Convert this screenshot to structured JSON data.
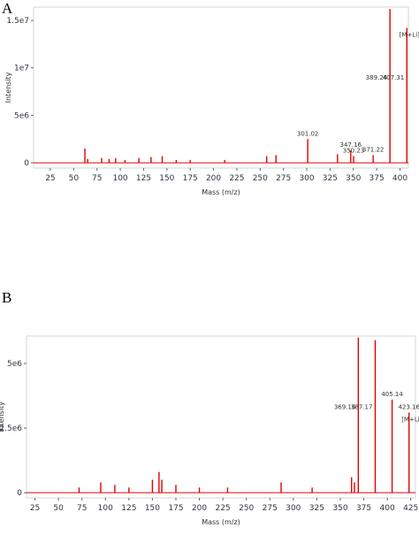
{
  "panels": [
    "A",
    "B"
  ],
  "chart_data": [
    {
      "type": "stem",
      "x_label": "Mass (m/z)",
      "y_label": "Intensity",
      "color": "#e00000",
      "x": [
        62,
        65,
        80,
        88,
        95,
        105,
        120,
        133,
        145,
        160,
        175,
        212,
        257,
        267,
        301.02,
        333,
        347.16,
        350.23,
        371.22,
        389.24,
        407.31
      ],
      "values": [
        1500000,
        400000,
        500000,
        400000,
        500000,
        300000,
        500000,
        600000,
        700000,
        300000,
        300000,
        300000,
        700000,
        800000,
        2500000,
        900000,
        1300000,
        700000,
        800000,
        16200000,
        14200000
      ],
      "peak_labels": [
        null,
        null,
        null,
        null,
        null,
        null,
        null,
        null,
        null,
        null,
        null,
        null,
        null,
        null,
        "301.02",
        null,
        "347.16",
        "350.23",
        "371.22",
        "389.24",
        "407.31"
      ],
      "annotation": "[M+Li]+",
      "xlim": [
        7,
        409
      ],
      "xticks": [
        25,
        50,
        75,
        100,
        125,
        150,
        175,
        200,
        225,
        250,
        275,
        300,
        325,
        350,
        375,
        400
      ],
      "ylim": [
        -550000,
        16400000
      ],
      "yticks": [
        0,
        {
          "value": 5000000,
          "label": "5e6"
        },
        {
          "value": 10000000,
          "label": "1e7"
        },
        {
          "value": 15000000,
          "label": "1.5e7"
        }
      ]
    },
    {
      "type": "stem",
      "x_label": "Mass (m/z)",
      "y_label": "Intensity",
      "color": "#e00000",
      "x": [
        72,
        95,
        110,
        125,
        150,
        157,
        160,
        175,
        200,
        230,
        287,
        320,
        362,
        365,
        369.16,
        387.17,
        405.14,
        423.16
      ],
      "values": [
        200000,
        400000,
        300000,
        200000,
        500000,
        800000,
        500000,
        300000,
        200000,
        200000,
        400000,
        200000,
        600000,
        400000,
        6000000,
        5900000,
        3600000,
        3100000
      ],
      "peak_labels": [
        null,
        null,
        null,
        null,
        null,
        null,
        null,
        null,
        null,
        null,
        null,
        null,
        null,
        null,
        "369.16",
        "387.17",
        "405.14",
        "423.16"
      ],
      "annotation": "[M+Li]+",
      "xlim": [
        16,
        430
      ],
      "xticks": [
        25,
        50,
        75,
        100,
        125,
        150,
        175,
        200,
        225,
        250,
        275,
        300,
        325,
        350,
        375,
        400,
        425
      ],
      "ylim": [
        -200000,
        6060000
      ],
      "yticks": [
        0,
        {
          "value": 2500000,
          "label": "2.5e6"
        },
        {
          "value": 5000000,
          "label": "5e6"
        }
      ]
    }
  ]
}
